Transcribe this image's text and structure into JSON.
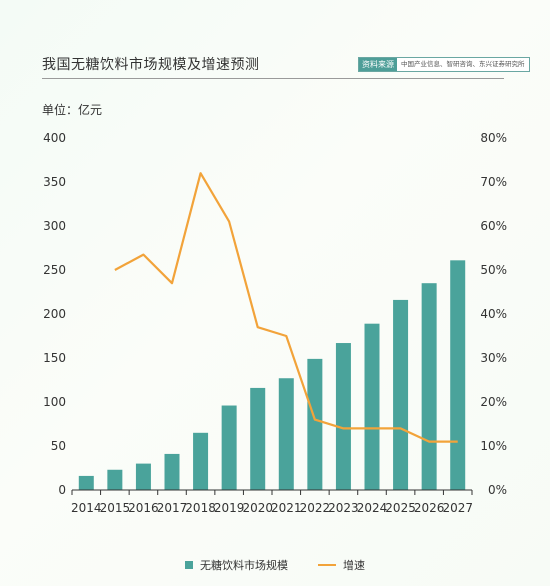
{
  "header": {
    "title": "我国无糖饮料市场规模及增速预测",
    "source_tag": "资料来源",
    "source_text": "中国产业信息、智研咨询、东兴证券研究所",
    "unit": "单位：亿元"
  },
  "legend": {
    "bar_label": "无糖饮料市场规模",
    "line_label": "增速"
  },
  "colors": {
    "bar": "#4aa39b",
    "line": "#f2a33a",
    "axis": "#333333"
  },
  "chart_data": {
    "type": "bar",
    "categories": [
      "2014",
      "2015",
      "2016",
      "2017",
      "2018",
      "2019",
      "2020",
      "2021",
      "2022",
      "2023",
      "2024",
      "2025",
      "2026",
      "2027"
    ],
    "series": [
      {
        "name": "无糖饮料市场规模",
        "type": "bar",
        "axis": "left",
        "values": [
          16,
          23,
          30,
          41,
          65,
          96,
          116,
          127,
          149,
          167,
          189,
          216,
          235,
          261
        ]
      },
      {
        "name": "增速",
        "type": "line",
        "axis": "right",
        "values": [
          null,
          0.5,
          0.535,
          0.47,
          0.72,
          0.61,
          0.37,
          0.35,
          0.16,
          0.14,
          0.14,
          0.14,
          0.11,
          0.11
        ]
      }
    ],
    "ylim": [
      0,
      400
    ],
    "y_ticks": [
      "0",
      "50",
      "100",
      "150",
      "200",
      "250",
      "300",
      "350",
      "400"
    ],
    "y2lim": [
      0,
      0.8
    ],
    "y2_ticks": [
      "0%",
      "10%",
      "20%",
      "30%",
      "40%",
      "50%",
      "60%",
      "70%",
      "80%"
    ],
    "grid": false,
    "legend_position": "bottom-center"
  }
}
